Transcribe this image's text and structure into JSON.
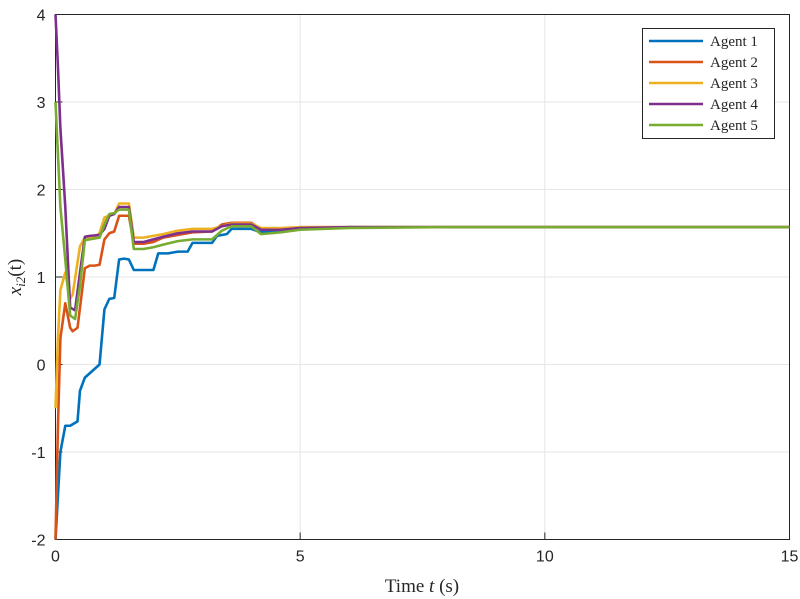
{
  "chart_data": {
    "type": "line",
    "xlabel_prefix": "Time ",
    "xlabel_var": "t",
    "xlabel_suffix": " (s)",
    "ylabel_main": "x",
    "ylabel_sub": "i2",
    "ylabel_arg": "(t)",
    "xlim": [
      0,
      15
    ],
    "ylim": [
      -2,
      4
    ],
    "xticks": [
      0,
      5,
      10,
      15
    ],
    "yticks": [
      -2,
      -1,
      0,
      1,
      2,
      3,
      4
    ],
    "grid": true,
    "legend_position": "top-right",
    "series": [
      {
        "name": "Agent 1",
        "color": "#0072BD",
        "points": [
          [
            0,
            -2
          ],
          [
            0.1,
            -1
          ],
          [
            0.2,
            -0.7
          ],
          [
            0.3,
            -0.7
          ],
          [
            0.45,
            -0.65
          ],
          [
            0.5,
            -0.3
          ],
          [
            0.6,
            -0.15
          ],
          [
            0.8,
            -0.05
          ],
          [
            0.9,
            0
          ],
          [
            1.0,
            0.63
          ],
          [
            1.1,
            0.75
          ],
          [
            1.2,
            0.76
          ],
          [
            1.3,
            1.2
          ],
          [
            1.4,
            1.21
          ],
          [
            1.5,
            1.2
          ],
          [
            1.6,
            1.08
          ],
          [
            1.7,
            1.08
          ],
          [
            2.0,
            1.08
          ],
          [
            2.1,
            1.27
          ],
          [
            2.3,
            1.27
          ],
          [
            2.5,
            1.29
          ],
          [
            2.6,
            1.29
          ],
          [
            2.7,
            1.29
          ],
          [
            2.8,
            1.39
          ],
          [
            3.2,
            1.39
          ],
          [
            3.3,
            1.47
          ],
          [
            3.5,
            1.49
          ],
          [
            3.6,
            1.55
          ],
          [
            4.0,
            1.55
          ],
          [
            4.2,
            1.51
          ],
          [
            4.6,
            1.53
          ],
          [
            5,
            1.55
          ],
          [
            6,
            1.57
          ],
          [
            8,
            1.57
          ],
          [
            15,
            1.57
          ]
        ]
      },
      {
        "name": "Agent 2",
        "color": "#D95319",
        "points": [
          [
            0,
            -2
          ],
          [
            0.05,
            -0.7
          ],
          [
            0.1,
            0.3
          ],
          [
            0.2,
            0.7
          ],
          [
            0.3,
            0.42
          ],
          [
            0.35,
            0.38
          ],
          [
            0.45,
            0.42
          ],
          [
            0.6,
            1.1
          ],
          [
            0.7,
            1.13
          ],
          [
            0.8,
            1.13
          ],
          [
            0.9,
            1.14
          ],
          [
            1.0,
            1.43
          ],
          [
            1.1,
            1.5
          ],
          [
            1.2,
            1.52
          ],
          [
            1.3,
            1.7
          ],
          [
            1.5,
            1.7
          ],
          [
            1.6,
            1.38
          ],
          [
            1.8,
            1.38
          ],
          [
            2.0,
            1.4
          ],
          [
            2.2,
            1.45
          ],
          [
            2.5,
            1.48
          ],
          [
            2.7,
            1.5
          ],
          [
            2.8,
            1.51
          ],
          [
            3.2,
            1.52
          ],
          [
            3.4,
            1.6
          ],
          [
            3.6,
            1.62
          ],
          [
            4.0,
            1.62
          ],
          [
            4.2,
            1.55
          ],
          [
            4.6,
            1.55
          ],
          [
            5,
            1.57
          ],
          [
            6,
            1.57
          ],
          [
            15,
            1.57
          ]
        ]
      },
      {
        "name": "Agent 3",
        "color": "#EDB120",
        "points": [
          [
            0,
            -0.5
          ],
          [
            0.05,
            0.3
          ],
          [
            0.1,
            0.85
          ],
          [
            0.2,
            1.05
          ],
          [
            0.3,
            0.75
          ],
          [
            0.35,
            0.8
          ],
          [
            0.5,
            1.35
          ],
          [
            0.6,
            1.45
          ],
          [
            0.8,
            1.46
          ],
          [
            0.9,
            1.5
          ],
          [
            1.0,
            1.68
          ],
          [
            1.1,
            1.7
          ],
          [
            1.2,
            1.72
          ],
          [
            1.3,
            1.84
          ],
          [
            1.5,
            1.84
          ],
          [
            1.6,
            1.45
          ],
          [
            1.8,
            1.45
          ],
          [
            2.0,
            1.47
          ],
          [
            2.2,
            1.49
          ],
          [
            2.5,
            1.53
          ],
          [
            2.8,
            1.55
          ],
          [
            3.2,
            1.55
          ],
          [
            3.4,
            1.58
          ],
          [
            3.6,
            1.61
          ],
          [
            4.0,
            1.61
          ],
          [
            4.2,
            1.56
          ],
          [
            4.6,
            1.56
          ],
          [
            5,
            1.57
          ],
          [
            6,
            1.57
          ],
          [
            15,
            1.57
          ]
        ]
      },
      {
        "name": "Agent 4",
        "color": "#7E2F8E",
        "points": [
          [
            0,
            4
          ],
          [
            0.05,
            3.4
          ],
          [
            0.1,
            2.7
          ],
          [
            0.2,
            1.8
          ],
          [
            0.3,
            0.65
          ],
          [
            0.4,
            0.62
          ],
          [
            0.5,
            1.05
          ],
          [
            0.6,
            1.46
          ],
          [
            0.7,
            1.47
          ],
          [
            0.9,
            1.48
          ],
          [
            1.0,
            1.55
          ],
          [
            1.1,
            1.7
          ],
          [
            1.2,
            1.72
          ],
          [
            1.3,
            1.8
          ],
          [
            1.5,
            1.8
          ],
          [
            1.6,
            1.4
          ],
          [
            1.8,
            1.4
          ],
          [
            2.0,
            1.43
          ],
          [
            2.2,
            1.46
          ],
          [
            2.5,
            1.5
          ],
          [
            2.8,
            1.52
          ],
          [
            3.2,
            1.52
          ],
          [
            3.4,
            1.58
          ],
          [
            3.6,
            1.6
          ],
          [
            4.0,
            1.6
          ],
          [
            4.2,
            1.54
          ],
          [
            4.6,
            1.54
          ],
          [
            5,
            1.56
          ],
          [
            6,
            1.57
          ],
          [
            15,
            1.57
          ]
        ]
      },
      {
        "name": "Agent 5",
        "color": "#77AC30",
        "points": [
          [
            0,
            3
          ],
          [
            0.05,
            2.4
          ],
          [
            0.1,
            1.8
          ],
          [
            0.2,
            1.2
          ],
          [
            0.3,
            0.56
          ],
          [
            0.4,
            0.52
          ],
          [
            0.5,
            0.9
          ],
          [
            0.6,
            1.42
          ],
          [
            0.8,
            1.44
          ],
          [
            0.9,
            1.45
          ],
          [
            1.0,
            1.6
          ],
          [
            1.1,
            1.72
          ],
          [
            1.2,
            1.73
          ],
          [
            1.3,
            1.77
          ],
          [
            1.5,
            1.77
          ],
          [
            1.6,
            1.32
          ],
          [
            1.8,
            1.32
          ],
          [
            2.0,
            1.34
          ],
          [
            2.2,
            1.37
          ],
          [
            2.5,
            1.41
          ],
          [
            2.8,
            1.43
          ],
          [
            3.2,
            1.43
          ],
          [
            3.4,
            1.53
          ],
          [
            3.6,
            1.58
          ],
          [
            4.0,
            1.58
          ],
          [
            4.2,
            1.49
          ],
          [
            4.6,
            1.51
          ],
          [
            5,
            1.54
          ],
          [
            6,
            1.56
          ],
          [
            8,
            1.57
          ],
          [
            15,
            1.57
          ]
        ]
      }
    ]
  }
}
